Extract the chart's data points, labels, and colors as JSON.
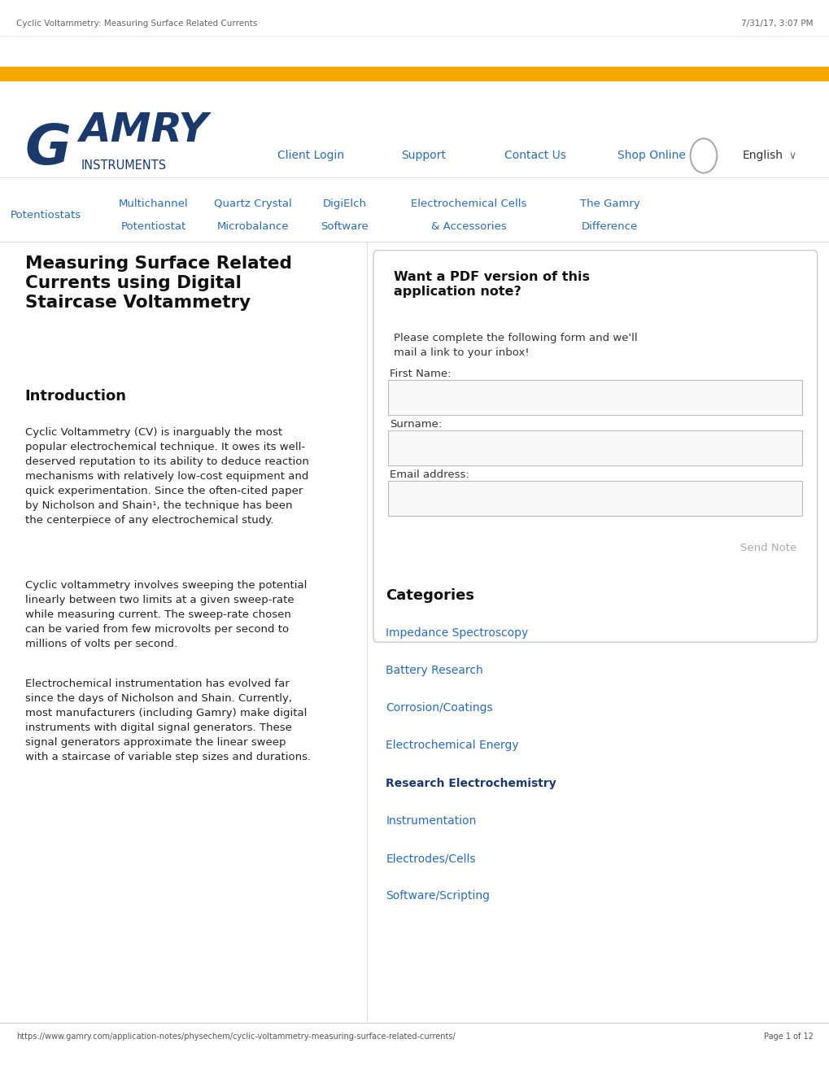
{
  "bg_color": "#ffffff",
  "header_bar_color": "#F5A800",
  "gamry_color": "#1B3A6B",
  "nav_color": "#2B6CB0",
  "nav_items": [
    "Client Login",
    "Support",
    "Contact Us",
    "Shop Online"
  ],
  "subnav_items": [
    "Potentiostats",
    "Multichannel\nPotentiostat",
    "Quartz Crystal\nMicrobalance",
    "DigiElch\nSoftware",
    "Electrochemical Cells\n& Accessories",
    "The Gamry\nDifference"
  ],
  "subnav_color": "#2B6CB0",
  "main_title": "Measuring Surface Related\nCurrents using Digital\nStaircase Voltammetry",
  "section_title": "Introduction",
  "body_para1": "Cyclic Voltammetry (CV) is inarguably the most\npopular electrochemical technique. It owes its well-\ndeserved reputation to its ability to deduce reaction\nmechanisms with relatively low-cost equipment and\nquick experimentation. Since the often-cited paper\nby Nicholson and Shain¹, the technique has been\nthe centerpiece of any electrochemical study.",
  "body_para2": "Cyclic voltammetry involves sweeping the potential\nlinearly between two limits at a given sweep-rate\nwhile measuring current. The sweep-rate chosen\ncan be varied from few microvolts per second to\nmillions of volts per second.",
  "body_para3": "Electrochemical instrumentation has evolved far\nsince the days of Nicholson and Shain. Currently,\nmost manufacturers (including Gamry) make digital\ninstruments with digital signal generators. These\nsignal generators approximate the linear sweep\nwith a staircase of variable step sizes and durations.",
  "sidebar_title": "Want a PDF version of this\napplication note?",
  "sidebar_body": "Please complete the following form and we'll\nmail a link to your inbox!",
  "form_fields": [
    "First Name:",
    "Surname:",
    "Email address:"
  ],
  "send_button": "Send Note",
  "categories_title": "Categories",
  "categories": [
    "Impedance Spectroscopy",
    "Battery Research",
    "Corrosion/Coatings",
    "Electrochemical Energy",
    "Research Electrochemistry",
    "Instrumentation",
    "Electrodes/Cells",
    "Software/Scripting"
  ],
  "cat_bold_idx": 4,
  "cat_color": "#2B6CB0",
  "cat_bold_color": "#1B3A6B",
  "footer_url": "https://www.gamry.com/application-notes/physechem/cyclic-voltammetry-measuring-surface-related-currents/",
  "footer_page": "Page 1 of 12",
  "header_meta_left": "Cyclic Voltammetry: Measuring Surface Related Currents",
  "header_meta_right": "7/31/17, 3:07 PM",
  "divider_color": "#cccccc",
  "text_color": "#333333",
  "light_text_color": "#888888"
}
